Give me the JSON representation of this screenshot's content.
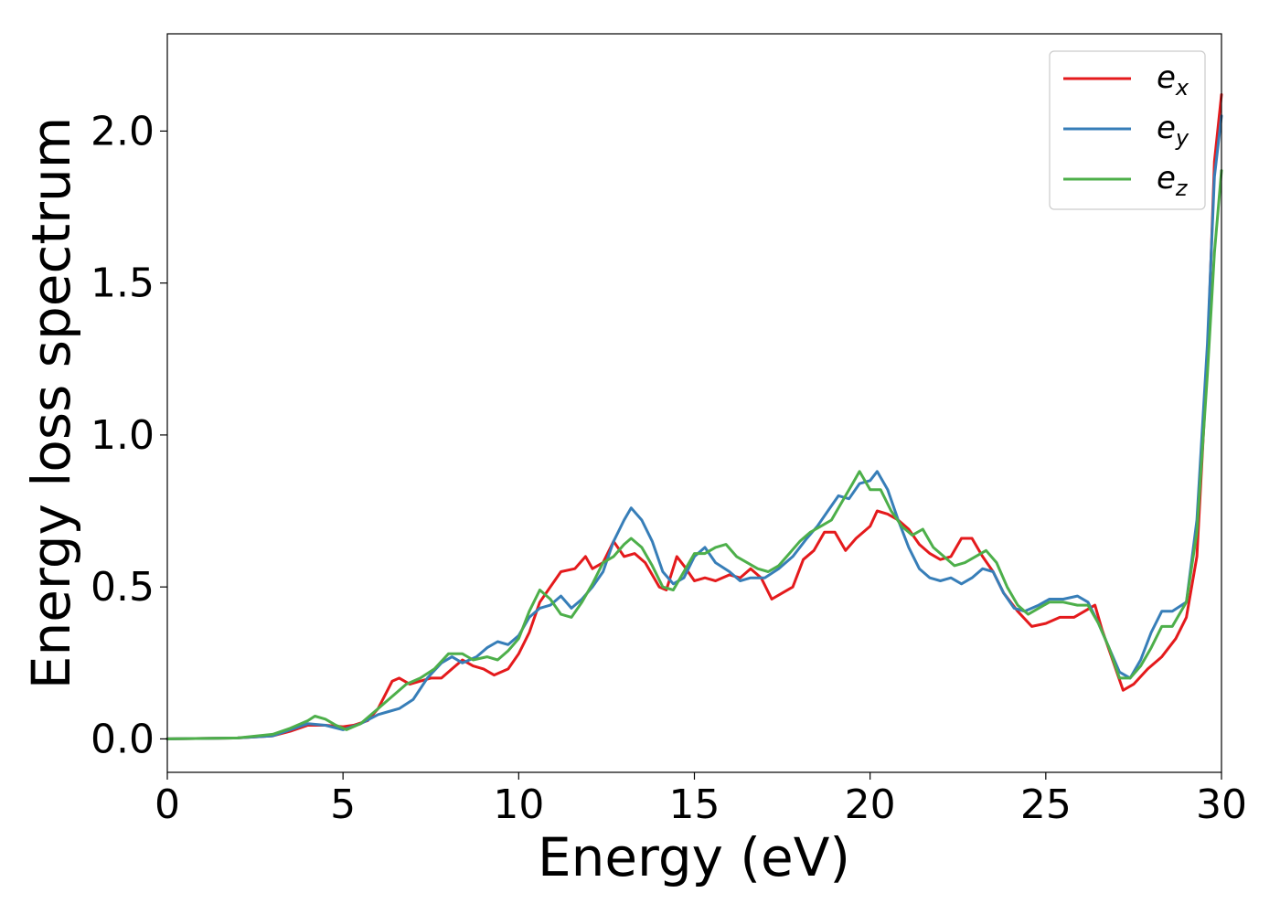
{
  "chart_data": {
    "type": "line",
    "title": "",
    "xlabel": "Energy (eV)",
    "ylabel": "Energy loss spectrum",
    "xlim": [
      0,
      30
    ],
    "ylim": [
      -0.11,
      2.32
    ],
    "xticks": [
      "0",
      "5",
      "10",
      "15",
      "20",
      "25",
      "30"
    ],
    "xtick_values": [
      0,
      5,
      10,
      15,
      20,
      25,
      30
    ],
    "yticks": [
      "0.0",
      "0.5",
      "1.0",
      "1.5",
      "2.0"
    ],
    "ytick_values": [
      0.0,
      0.5,
      1.0,
      1.5,
      2.0
    ],
    "grid": false,
    "legend_position": "top-right",
    "series": [
      {
        "name": "e_x",
        "legend_base": "e",
        "legend_sub": "x",
        "color": "#e41a1c",
        "points": [
          [
            0,
            0
          ],
          [
            2,
            0.003
          ],
          [
            3,
            0.01
          ],
          [
            3.5,
            0.025
          ],
          [
            4,
            0.045
          ],
          [
            4.5,
            0.045
          ],
          [
            5,
            0.04
          ],
          [
            5.3,
            0.045
          ],
          [
            5.7,
            0.06
          ],
          [
            6,
            0.1
          ],
          [
            6.4,
            0.19
          ],
          [
            6.6,
            0.2
          ],
          [
            6.9,
            0.18
          ],
          [
            7.2,
            0.19
          ],
          [
            7.5,
            0.2
          ],
          [
            7.8,
            0.2
          ],
          [
            8.1,
            0.23
          ],
          [
            8.4,
            0.26
          ],
          [
            8.7,
            0.24
          ],
          [
            9,
            0.23
          ],
          [
            9.3,
            0.21
          ],
          [
            9.7,
            0.23
          ],
          [
            10,
            0.28
          ],
          [
            10.3,
            0.35
          ],
          [
            10.6,
            0.45
          ],
          [
            10.9,
            0.5
          ],
          [
            11.2,
            0.55
          ],
          [
            11.6,
            0.56
          ],
          [
            11.9,
            0.6
          ],
          [
            12.1,
            0.56
          ],
          [
            12.4,
            0.58
          ],
          [
            12.7,
            0.65
          ],
          [
            13,
            0.6
          ],
          [
            13.3,
            0.61
          ],
          [
            13.6,
            0.58
          ],
          [
            14,
            0.5
          ],
          [
            14.2,
            0.49
          ],
          [
            14.5,
            0.6
          ],
          [
            14.7,
            0.57
          ],
          [
            15,
            0.52
          ],
          [
            15.3,
            0.53
          ],
          [
            15.6,
            0.52
          ],
          [
            16,
            0.54
          ],
          [
            16.3,
            0.53
          ],
          [
            16.6,
            0.56
          ],
          [
            16.9,
            0.53
          ],
          [
            17.2,
            0.46
          ],
          [
            17.5,
            0.48
          ],
          [
            17.8,
            0.5
          ],
          [
            18.1,
            0.59
          ],
          [
            18.4,
            0.62
          ],
          [
            18.7,
            0.68
          ],
          [
            19,
            0.68
          ],
          [
            19.3,
            0.62
          ],
          [
            19.6,
            0.66
          ],
          [
            20,
            0.7
          ],
          [
            20.2,
            0.75
          ],
          [
            20.5,
            0.74
          ],
          [
            20.8,
            0.72
          ],
          [
            21.1,
            0.69
          ],
          [
            21.4,
            0.64
          ],
          [
            21.7,
            0.61
          ],
          [
            22,
            0.59
          ],
          [
            22.3,
            0.6
          ],
          [
            22.6,
            0.66
          ],
          [
            22.9,
            0.66
          ],
          [
            23.2,
            0.6
          ],
          [
            23.5,
            0.55
          ],
          [
            23.8,
            0.48
          ],
          [
            24.2,
            0.42
          ],
          [
            24.6,
            0.37
          ],
          [
            25,
            0.38
          ],
          [
            25.4,
            0.4
          ],
          [
            25.8,
            0.4
          ],
          [
            26.1,
            0.42
          ],
          [
            26.4,
            0.44
          ],
          [
            26.6,
            0.36
          ],
          [
            26.9,
            0.26
          ],
          [
            27.2,
            0.16
          ],
          [
            27.5,
            0.18
          ],
          [
            27.9,
            0.23
          ],
          [
            28.3,
            0.27
          ],
          [
            28.7,
            0.33
          ],
          [
            29,
            0.4
          ],
          [
            29.3,
            0.6
          ],
          [
            29.6,
            1.25
          ],
          [
            29.8,
            1.9
          ],
          [
            30,
            2.12
          ]
        ]
      },
      {
        "name": "e_y",
        "legend_base": "e",
        "legend_sub": "y",
        "color": "#377eb8",
        "points": [
          [
            0,
            0
          ],
          [
            2,
            0.003
          ],
          [
            3,
            0.01
          ],
          [
            3.5,
            0.03
          ],
          [
            4,
            0.05
          ],
          [
            4.5,
            0.045
          ],
          [
            5,
            0.03
          ],
          [
            5.5,
            0.05
          ],
          [
            6,
            0.08
          ],
          [
            6.3,
            0.09
          ],
          [
            6.6,
            0.1
          ],
          [
            7,
            0.13
          ],
          [
            7.4,
            0.2
          ],
          [
            7.8,
            0.25
          ],
          [
            8.1,
            0.27
          ],
          [
            8.4,
            0.25
          ],
          [
            8.8,
            0.27
          ],
          [
            9.1,
            0.3
          ],
          [
            9.4,
            0.32
          ],
          [
            9.7,
            0.31
          ],
          [
            10,
            0.34
          ],
          [
            10.3,
            0.4
          ],
          [
            10.6,
            0.43
          ],
          [
            10.9,
            0.44
          ],
          [
            11.2,
            0.47
          ],
          [
            11.5,
            0.43
          ],
          [
            11.8,
            0.46
          ],
          [
            12.1,
            0.5
          ],
          [
            12.4,
            0.55
          ],
          [
            12.7,
            0.65
          ],
          [
            13,
            0.72
          ],
          [
            13.2,
            0.76
          ],
          [
            13.5,
            0.72
          ],
          [
            13.8,
            0.65
          ],
          [
            14.1,
            0.55
          ],
          [
            14.4,
            0.51
          ],
          [
            14.7,
            0.53
          ],
          [
            15,
            0.6
          ],
          [
            15.3,
            0.63
          ],
          [
            15.6,
            0.58
          ],
          [
            16,
            0.55
          ],
          [
            16.3,
            0.52
          ],
          [
            16.6,
            0.53
          ],
          [
            17,
            0.53
          ],
          [
            17.4,
            0.56
          ],
          [
            17.8,
            0.6
          ],
          [
            18.2,
            0.66
          ],
          [
            18.5,
            0.7
          ],
          [
            18.8,
            0.75
          ],
          [
            19.1,
            0.8
          ],
          [
            19.4,
            0.79
          ],
          [
            19.7,
            0.84
          ],
          [
            20,
            0.85
          ],
          [
            20.2,
            0.88
          ],
          [
            20.5,
            0.82
          ],
          [
            20.8,
            0.72
          ],
          [
            21.1,
            0.63
          ],
          [
            21.4,
            0.56
          ],
          [
            21.7,
            0.53
          ],
          [
            22,
            0.52
          ],
          [
            22.3,
            0.53
          ],
          [
            22.6,
            0.51
          ],
          [
            22.9,
            0.53
          ],
          [
            23.2,
            0.56
          ],
          [
            23.5,
            0.55
          ],
          [
            23.8,
            0.48
          ],
          [
            24.1,
            0.43
          ],
          [
            24.4,
            0.42
          ],
          [
            24.8,
            0.44
          ],
          [
            25.1,
            0.46
          ],
          [
            25.5,
            0.46
          ],
          [
            25.9,
            0.47
          ],
          [
            26.2,
            0.45
          ],
          [
            26.5,
            0.38
          ],
          [
            26.8,
            0.3
          ],
          [
            27.1,
            0.22
          ],
          [
            27.4,
            0.2
          ],
          [
            27.7,
            0.26
          ],
          [
            28,
            0.35
          ],
          [
            28.3,
            0.42
          ],
          [
            28.6,
            0.42
          ],
          [
            29,
            0.45
          ],
          [
            29.3,
            0.72
          ],
          [
            29.6,
            1.3
          ],
          [
            29.8,
            1.85
          ],
          [
            30,
            2.05
          ]
        ]
      },
      {
        "name": "e_z",
        "legend_base": "e",
        "legend_sub": "z",
        "color": "#4daf4a",
        "points": [
          [
            0,
            0
          ],
          [
            2,
            0.003
          ],
          [
            3,
            0.015
          ],
          [
            3.5,
            0.035
          ],
          [
            4,
            0.06
          ],
          [
            4.2,
            0.075
          ],
          [
            4.5,
            0.065
          ],
          [
            4.8,
            0.045
          ],
          [
            5.1,
            0.03
          ],
          [
            5.5,
            0.05
          ],
          [
            6,
            0.1
          ],
          [
            6.4,
            0.14
          ],
          [
            6.8,
            0.18
          ],
          [
            7.2,
            0.2
          ],
          [
            7.6,
            0.23
          ],
          [
            8,
            0.28
          ],
          [
            8.4,
            0.28
          ],
          [
            8.7,
            0.26
          ],
          [
            9.1,
            0.27
          ],
          [
            9.4,
            0.26
          ],
          [
            9.7,
            0.29
          ],
          [
            10,
            0.33
          ],
          [
            10.3,
            0.42
          ],
          [
            10.6,
            0.49
          ],
          [
            10.9,
            0.46
          ],
          [
            11.2,
            0.41
          ],
          [
            11.5,
            0.4
          ],
          [
            11.8,
            0.45
          ],
          [
            12.1,
            0.51
          ],
          [
            12.4,
            0.58
          ],
          [
            12.7,
            0.6
          ],
          [
            13,
            0.64
          ],
          [
            13.2,
            0.66
          ],
          [
            13.5,
            0.63
          ],
          [
            13.8,
            0.57
          ],
          [
            14.1,
            0.5
          ],
          [
            14.4,
            0.49
          ],
          [
            14.7,
            0.55
          ],
          [
            15,
            0.61
          ],
          [
            15.3,
            0.61
          ],
          [
            15.6,
            0.63
          ],
          [
            15.9,
            0.64
          ],
          [
            16.2,
            0.6
          ],
          [
            16.5,
            0.58
          ],
          [
            16.8,
            0.56
          ],
          [
            17.1,
            0.55
          ],
          [
            17.4,
            0.57
          ],
          [
            17.7,
            0.61
          ],
          [
            18,
            0.65
          ],
          [
            18.3,
            0.68
          ],
          [
            18.6,
            0.7
          ],
          [
            18.9,
            0.72
          ],
          [
            19.2,
            0.78
          ],
          [
            19.5,
            0.84
          ],
          [
            19.7,
            0.88
          ],
          [
            20,
            0.82
          ],
          [
            20.3,
            0.82
          ],
          [
            20.6,
            0.75
          ],
          [
            20.9,
            0.7
          ],
          [
            21.2,
            0.67
          ],
          [
            21.5,
            0.69
          ],
          [
            21.8,
            0.63
          ],
          [
            22.1,
            0.6
          ],
          [
            22.4,
            0.57
          ],
          [
            22.7,
            0.58
          ],
          [
            23,
            0.6
          ],
          [
            23.3,
            0.62
          ],
          [
            23.6,
            0.58
          ],
          [
            23.9,
            0.5
          ],
          [
            24.2,
            0.44
          ],
          [
            24.5,
            0.41
          ],
          [
            24.8,
            0.43
          ],
          [
            25.1,
            0.45
          ],
          [
            25.5,
            0.45
          ],
          [
            25.9,
            0.44
          ],
          [
            26.2,
            0.44
          ],
          [
            26.5,
            0.38
          ],
          [
            26.8,
            0.3
          ],
          [
            27.1,
            0.2
          ],
          [
            27.4,
            0.2
          ],
          [
            27.7,
            0.24
          ],
          [
            28,
            0.3
          ],
          [
            28.3,
            0.37
          ],
          [
            28.6,
            0.37
          ],
          [
            29,
            0.45
          ],
          [
            29.3,
            0.68
          ],
          [
            29.6,
            1.2
          ],
          [
            29.8,
            1.6
          ],
          [
            30,
            1.87
          ]
        ]
      }
    ]
  }
}
